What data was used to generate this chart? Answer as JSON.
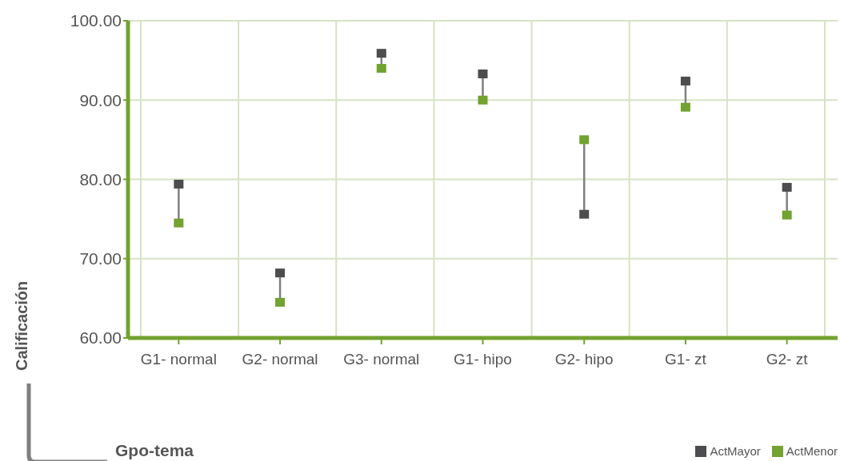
{
  "chart_data": {
    "type": "scatter",
    "xlabel": "Gpo-tema",
    "ylabel": "Calificación",
    "categories": [
      "G1- normal",
      "G2- normal",
      "G3- normal",
      "G1- hipo",
      "G2- hipo",
      "G1- zt",
      "G2- zt"
    ],
    "series": [
      {
        "name": "ActMayor",
        "color": "#4d4d4f",
        "values": [
          79.4,
          68.2,
          95.9,
          93.3,
          75.6,
          92.4,
          79.0
        ]
      },
      {
        "name": "ActMenor",
        "color": "#72a22f",
        "values": [
          74.5,
          64.5,
          94.0,
          90.0,
          85.0,
          89.1,
          75.5
        ]
      }
    ],
    "ylim": [
      60,
      100
    ],
    "yticks": [
      {
        "value": 60,
        "label": "60.00"
      },
      {
        "value": 70,
        "label": "70.00"
      },
      {
        "value": 80,
        "label": "80.00"
      },
      {
        "value": 90,
        "label": "90.00"
      },
      {
        "value": 100,
        "label": "100.00"
      }
    ],
    "grid": true,
    "legend": "bottom right",
    "marker": "square"
  }
}
